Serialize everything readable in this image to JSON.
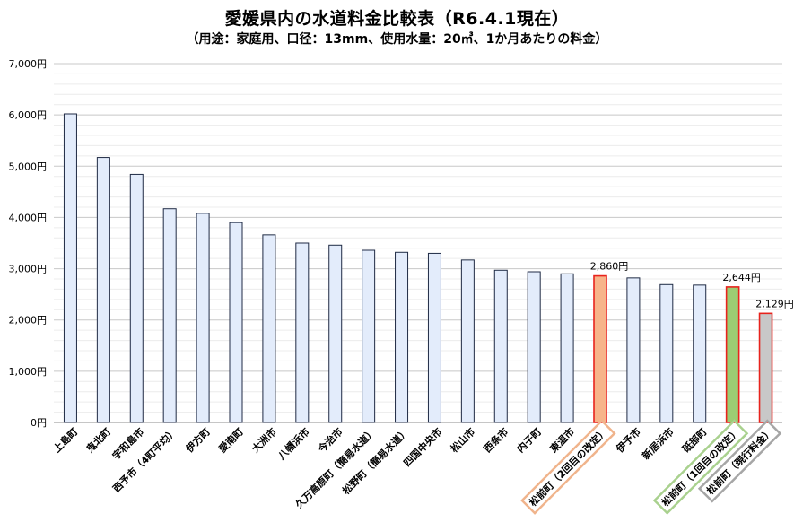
{
  "chart_data": {
    "type": "bar",
    "title": "愛媛県内の水道料金比較表（R6.4.1現在）",
    "subtitle": "（用途：家庭用、口径：13mm、使用水量：20㎥、1か月あたりの料金）",
    "ylabel": "",
    "xlabel": "",
    "ylim": [
      0,
      7000
    ],
    "yticks": [
      "0円",
      "1,000円",
      "2,000円",
      "3,000円",
      "4,000円",
      "5,000円",
      "6,000円",
      "7,000円"
    ],
    "grid": true,
    "categories": [
      "上島町",
      "鬼北町",
      "宇和島市",
      "西予市（4町平均）",
      "伊方町",
      "愛南町",
      "大洲市",
      "八幡浜市",
      "今治市",
      "久万高原町（簡易水道）",
      "松野町（簡易水道）",
      "四国中央市",
      "松山市",
      "西条市",
      "内子町",
      "東温市",
      "松前町（2回目の改定）",
      "伊予市",
      "新居浜市",
      "砥部町",
      "松前町（1回目の改定）",
      "松前町（現行料金）"
    ],
    "values": [
      6020,
      5170,
      4840,
      4170,
      4080,
      3900,
      3660,
      3500,
      3460,
      3360,
      3320,
      3300,
      3170,
      2970,
      2940,
      2900,
      2860,
      2820,
      2690,
      2680,
      2644,
      2129
    ],
    "data_labels": [
      "",
      "",
      "",
      "",
      "",
      "",
      "",
      "",
      "",
      "",
      "",
      "",
      "",
      "",
      "",
      "",
      "2,860円",
      "",
      "",
      "",
      "2,644円",
      "2,129円"
    ],
    "highlight": {
      "default_fill": "#e3ecfb",
      "default_stroke": "#1f2a44",
      "highlight_stroke": "#e8231d",
      "fills": {
        "16": "#f7b48a",
        "20": "#9ccc73",
        "21": "#c8c8c8"
      },
      "label_box_colors": {
        "16": "#f0b48c",
        "20": "#a9d18e",
        "21": "#a6a6a6"
      }
    }
  }
}
